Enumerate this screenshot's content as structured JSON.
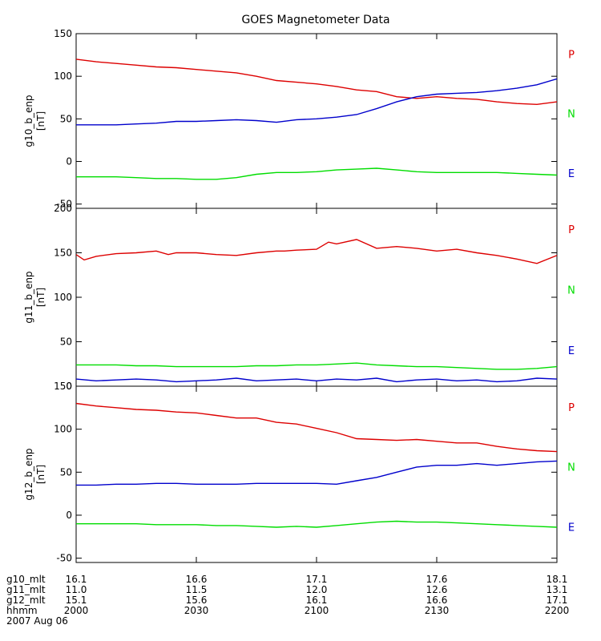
{
  "chart_data": {
    "type": "line",
    "title": "GOES Magnetometer Data",
    "x_range": [
      0,
      120
    ],
    "x_ticks": [
      0,
      30,
      60,
      90,
      120
    ],
    "colors": {
      "P": "#dd0000",
      "N": "#00dd00",
      "E": "#0000cc",
      "axis": "#000000"
    },
    "panels": [
      {
        "id": "g10",
        "ylabel": "g10_b_enp",
        "yunits": "[nT]",
        "ylim": [
          -55,
          150
        ],
        "yticks": [
          150,
          100,
          50,
          0,
          -50
        ],
        "ytick_labels": [
          "150",
          "100",
          "50",
          "0",
          "-50"
        ],
        "legend": [
          "P",
          "N",
          "E"
        ],
        "series": [
          {
            "name": "P",
            "x": [
              0,
              5,
              10,
              15,
              20,
              25,
              30,
              35,
              40,
              45,
              50,
              55,
              60,
              65,
              70,
              75,
              80,
              85,
              90,
              95,
              100,
              105,
              110,
              115,
              120
            ],
            "values": [
              120,
              117,
              115,
              113,
              111,
              110,
              108,
              106,
              104,
              100,
              95,
              93,
              91,
              88,
              84,
              82,
              76,
              74,
              76,
              74,
              73,
              70,
              68,
              67,
              70
            ]
          },
          {
            "name": "E",
            "x": [
              0,
              5,
              10,
              15,
              20,
              25,
              30,
              35,
              40,
              45,
              50,
              55,
              60,
              65,
              70,
              75,
              80,
              85,
              90,
              95,
              100,
              105,
              110,
              115,
              120
            ],
            "values": [
              43,
              43,
              43,
              44,
              45,
              47,
              47,
              48,
              49,
              48,
              46,
              49,
              50,
              52,
              55,
              62,
              70,
              76,
              79,
              80,
              81,
              83,
              86,
              90,
              97
            ]
          },
          {
            "name": "N",
            "x": [
              0,
              5,
              10,
              15,
              20,
              25,
              30,
              35,
              40,
              45,
              50,
              55,
              60,
              65,
              70,
              75,
              80,
              85,
              90,
              95,
              100,
              105,
              110,
              115,
              120
            ],
            "values": [
              -18,
              -18,
              -18,
              -19,
              -20,
              -20,
              -21,
              -21,
              -19,
              -15,
              -13,
              -13,
              -12,
              -10,
              -9,
              -8,
              -10,
              -12,
              -13,
              -13,
              -13,
              -13,
              -14,
              -15,
              -16
            ]
          }
        ]
      },
      {
        "id": "g11",
        "ylabel": "g11_b_enp",
        "yunits": "[nT]",
        "ylim": [
          0,
          200
        ],
        "yticks": [
          200,
          150,
          100,
          50,
          0
        ],
        "ytick_labels": [
          "200",
          "150",
          "100",
          "50",
          "0"
        ],
        "legend": [
          "P",
          "N",
          "E"
        ],
        "series": [
          {
            "name": "P",
            "x": [
              0,
              2,
              5,
              10,
              15,
              20,
              23,
              25,
              30,
              35,
              40,
              45,
              50,
              52,
              55,
              60,
              63,
              65,
              70,
              75,
              80,
              85,
              90,
              95,
              100,
              105,
              110,
              115,
              120
            ],
            "values": [
              148,
              142,
              146,
              149,
              150,
              152,
              148,
              150,
              150,
              148,
              147,
              150,
              152,
              152,
              153,
              154,
              162,
              160,
              165,
              155,
              157,
              155,
              152,
              154,
              150,
              147,
              143,
              138,
              147
            ]
          },
          {
            "name": "N",
            "x": [
              0,
              5,
              10,
              15,
              20,
              25,
              30,
              35,
              40,
              45,
              50,
              55,
              60,
              65,
              70,
              75,
              80,
              85,
              90,
              95,
              100,
              105,
              110,
              115,
              120
            ],
            "values": [
              24,
              24,
              24,
              23,
              23,
              22,
              22,
              22,
              22,
              23,
              23,
              24,
              24,
              25,
              26,
              24,
              23,
              22,
              22,
              21,
              20,
              19,
              19,
              20,
              22
            ]
          },
          {
            "name": "E",
            "x": [
              0,
              5,
              10,
              15,
              20,
              25,
              30,
              35,
              40,
              45,
              50,
              55,
              60,
              65,
              70,
              75,
              80,
              85,
              90,
              95,
              100,
              105,
              110,
              115,
              120
            ],
            "values": [
              8,
              6,
              7,
              8,
              7,
              5,
              6,
              7,
              9,
              6,
              7,
              8,
              6,
              8,
              7,
              9,
              5,
              7,
              8,
              6,
              7,
              5,
              6,
              9,
              8
            ]
          }
        ]
      },
      {
        "id": "g12",
        "ylabel": "g12_b_enp",
        "yunits": "[nT]",
        "ylim": [
          -55,
          150
        ],
        "yticks": [
          150,
          100,
          50,
          0,
          -50
        ],
        "ytick_labels": [
          "150",
          "100",
          "50",
          "0",
          "-50"
        ],
        "legend": [
          "P",
          "N",
          "E"
        ],
        "series": [
          {
            "name": "P",
            "x": [
              0,
              5,
              10,
              15,
              20,
              25,
              30,
              35,
              40,
              45,
              50,
              55,
              60,
              65,
              70,
              75,
              80,
              85,
              90,
              95,
              100,
              105,
              110,
              115,
              120
            ],
            "values": [
              130,
              127,
              125,
              123,
              122,
              120,
              119,
              116,
              113,
              113,
              108,
              106,
              101,
              96,
              89,
              88,
              87,
              88,
              86,
              84,
              84,
              80,
              77,
              75,
              74
            ]
          },
          {
            "name": "E",
            "x": [
              0,
              5,
              10,
              15,
              20,
              25,
              30,
              35,
              40,
              45,
              50,
              55,
              60,
              65,
              70,
              75,
              80,
              85,
              90,
              95,
              100,
              105,
              110,
              115,
              120
            ],
            "values": [
              35,
              35,
              36,
              36,
              37,
              37,
              36,
              36,
              36,
              37,
              37,
              37,
              37,
              36,
              40,
              44,
              50,
              56,
              58,
              58,
              60,
              58,
              60,
              62,
              63
            ]
          },
          {
            "name": "N",
            "x": [
              0,
              5,
              10,
              15,
              20,
              25,
              30,
              35,
              40,
              45,
              50,
              55,
              60,
              65,
              70,
              75,
              80,
              85,
              90,
              95,
              100,
              105,
              110,
              115,
              120
            ],
            "values": [
              -10,
              -10,
              -10,
              -10,
              -11,
              -11,
              -11,
              -12,
              -12,
              -13,
              -14,
              -13,
              -14,
              -12,
              -10,
              -8,
              -7,
              -8,
              -8,
              -9,
              -10,
              -11,
              -12,
              -13,
              -14
            ]
          }
        ]
      }
    ],
    "x_axis_rows": [
      {
        "label": "g10_mlt",
        "values": [
          "16.1",
          "16.6",
          "17.1",
          "17.6",
          "18.1"
        ]
      },
      {
        "label": "g11_mlt",
        "values": [
          "11.0",
          "11.5",
          "12.0",
          "12.6",
          "13.1"
        ]
      },
      {
        "label": "g12_mlt",
        "values": [
          "15.1",
          "15.6",
          "16.1",
          "16.6",
          "17.1"
        ]
      },
      {
        "label": "hhmm",
        "values": [
          "2000",
          "2030",
          "2100",
          "2130",
          "2200"
        ]
      }
    ],
    "date_label": "2007 Aug 06"
  }
}
